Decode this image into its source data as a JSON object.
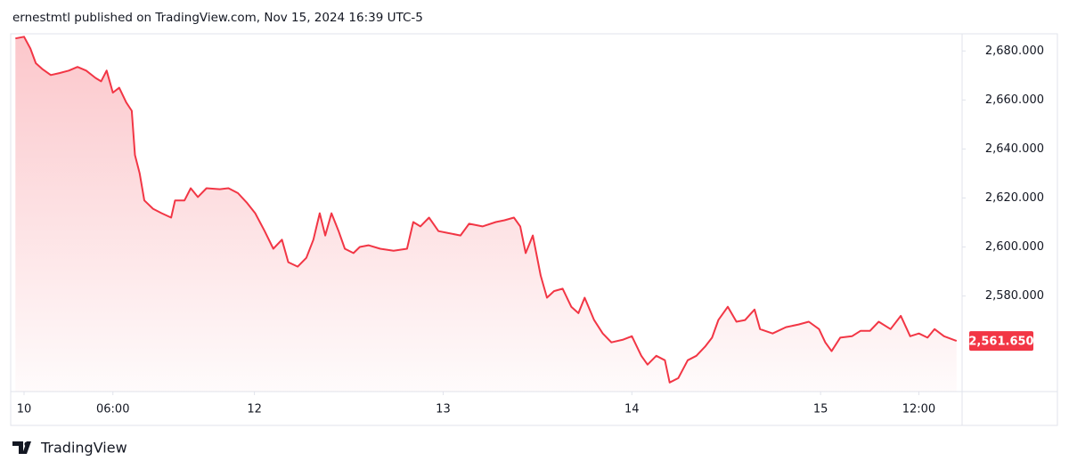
{
  "header": "ernestmtl published on TradingView.com, Nov 15, 2024 16:39 UTC-5",
  "footer": "TradingView",
  "chart_data": {
    "type": "line",
    "color": "#f23645",
    "area": true,
    "x": [
      17.6,
      18.7,
      19.5,
      20.2,
      21.0,
      22.1,
      23.2,
      24.4,
      25.5,
      26.6,
      27.8,
      28.5,
      29.2,
      30.0,
      30.8,
      31.7,
      32.4,
      32.8,
      33.4,
      34.0,
      35.1,
      36.2,
      37.4,
      37.9,
      39.1,
      39.9,
      40.8,
      41.9,
      43.6,
      44.7,
      45.9,
      47.0,
      48.1,
      49.3,
      50.4,
      51.5,
      52.3,
      53.5,
      54.6,
      55.5,
      56.3,
      57.0,
      57.8,
      58.7,
      59.5,
      60.6,
      61.4,
      62.5,
      64.0,
      65.7,
      67.4,
      68.2,
      69.1,
      70.2,
      71.4,
      72.5,
      74.2,
      75.3,
      77.0,
      78.7,
      79.8,
      81.0,
      81.8,
      82.5,
      83.4,
      84.4,
      85.2,
      86.1,
      87.2,
      88.3,
      89.2,
      90.0,
      91.2,
      92.3,
      93.4,
      94.9,
      96.0,
      97.2,
      98.0,
      99.1,
      100.2,
      100.8,
      101.9,
      103.1,
      104.2,
      105.3,
      106.2,
      107.0,
      108.2,
      109.3,
      110.4,
      111.6,
      112.3,
      113.9,
      115.6,
      117.2,
      118.5,
      119.8,
      120.6,
      121.4,
      122.5,
      124.0,
      125.1,
      126.3,
      127.4,
      128.9,
      130.2,
      131.4,
      132.5,
      133.6,
      134.5,
      135.7,
      137.3
    ],
    "values": [
      2685.1,
      2685.8,
      2681,
      2675,
      2672.7,
      2670.2,
      2671,
      2672,
      2673.5,
      2672,
      2669,
      2667.6,
      2672,
      2663,
      2665,
      2659,
      2655.6,
      2637.5,
      2630,
      2619,
      2615.6,
      2613.8,
      2612,
      2619,
      2619,
      2624,
      2620.4,
      2624,
      2623.6,
      2624,
      2622,
      2618.2,
      2613.8,
      2606.5,
      2599.3,
      2603,
      2593.8,
      2592,
      2595.6,
      2603,
      2613.8,
      2604.7,
      2613.8,
      2606.5,
      2599.3,
      2597.5,
      2600,
      2600.7,
      2599.3,
      2598.5,
      2599.3,
      2610.2,
      2608.4,
      2612,
      2606.5,
      2605.8,
      2604.7,
      2609.5,
      2608.4,
      2610.2,
      2610.9,
      2612,
      2608.4,
      2597.5,
      2604.7,
      2588.4,
      2579.3,
      2582,
      2583,
      2575.6,
      2573,
      2579.3,
      2570.2,
      2564.7,
      2561.1,
      2562.2,
      2563.6,
      2555.6,
      2552,
      2555.6,
      2553.8,
      2544.7,
      2546.5,
      2553.8,
      2555.6,
      2559.3,
      2563,
      2570.2,
      2575.6,
      2569.5,
      2570.2,
      2574.5,
      2566.5,
      2564.7,
      2567.3,
      2568.4,
      2569.5,
      2566.5,
      2561.1,
      2557.5,
      2563,
      2563.6,
      2565.8,
      2565.8,
      2569.5,
      2566.5,
      2571.9,
      2563.6,
      2564.7,
      2563,
      2566.5,
      2563.6,
      2561.65
    ],
    "last_value": 2561.65,
    "last_value_label": "2,561.650",
    "xlim": [
      17,
      138
    ],
    "xticks": [
      {
        "value": 18.7,
        "label": "10"
      },
      {
        "value": 30,
        "label": "06:00"
      },
      {
        "value": 48,
        "label": "12"
      },
      {
        "value": 72,
        "label": "13"
      },
      {
        "value": 96,
        "label": "14"
      },
      {
        "value": 120,
        "label": "15"
      },
      {
        "value": 132.5,
        "label": "12:00"
      }
    ],
    "ylim": [
      2541,
      2687
    ],
    "yticks": [
      {
        "value": 2580,
        "label": "2,580.000"
      },
      {
        "value": 2600,
        "label": "2,600.000"
      },
      {
        "value": 2620,
        "label": "2,620.000"
      },
      {
        "value": 2640,
        "label": "2,640.000"
      },
      {
        "value": 2660,
        "label": "2,660.000"
      },
      {
        "value": 2680,
        "label": "2,680.000"
      }
    ]
  }
}
